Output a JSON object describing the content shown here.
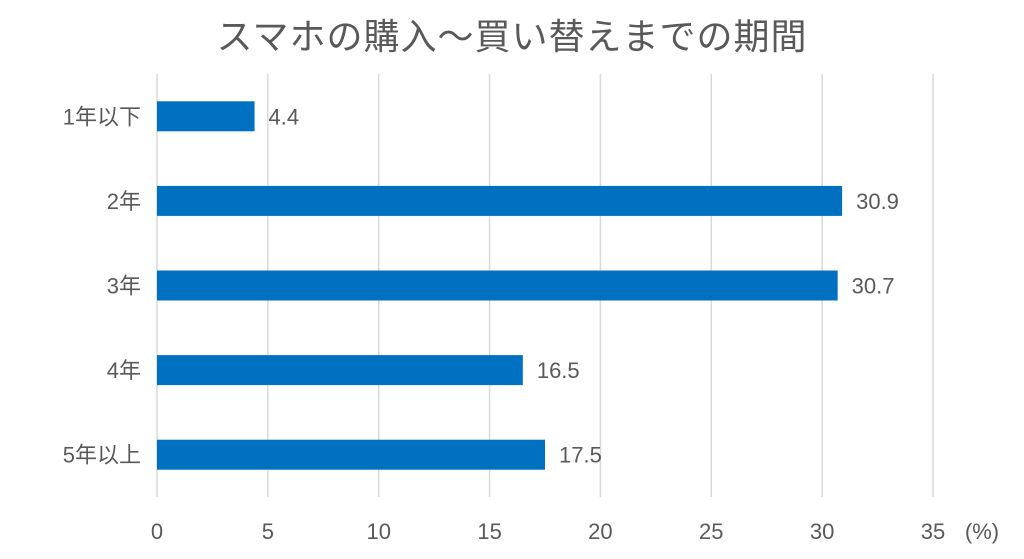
{
  "chart_data": {
    "type": "bar",
    "orientation": "horizontal",
    "title": "スマホの購入～買い替えまでの期間",
    "categories": [
      "1年以下",
      "2年",
      "3年",
      "4年",
      "5年以上"
    ],
    "values": [
      4.4,
      30.9,
      30.7,
      16.5,
      17.5
    ],
    "data_labels": [
      "4.4",
      "30.9",
      "30.7",
      "16.5",
      "17.5"
    ],
    "xlim": [
      0,
      35
    ],
    "xticks": [
      0,
      5,
      10,
      15,
      20,
      25,
      30,
      35
    ],
    "x_unit_label": "(%)",
    "grid": true,
    "legend": "none",
    "colors": {
      "bar": "#0070C0",
      "grid": "#D9D9D9",
      "text": "#595959"
    }
  }
}
